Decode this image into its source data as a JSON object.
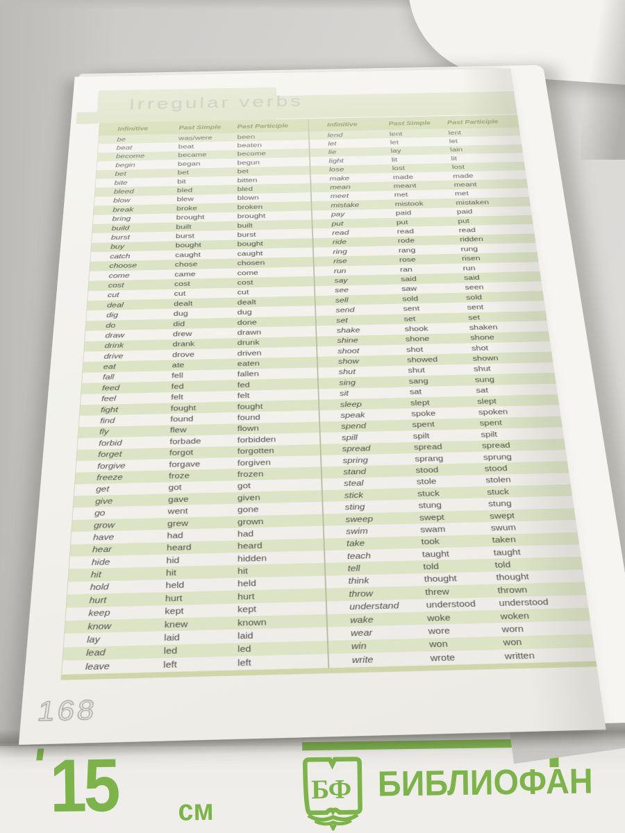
{
  "page": {
    "title": "Irregular verbs",
    "page_number": "168",
    "columns": [
      "Infinitive",
      "Past Simple",
      "Past Participle"
    ],
    "left_rows": [
      [
        "be",
        "was/were",
        "been"
      ],
      [
        "beat",
        "beat",
        "beaten"
      ],
      [
        "become",
        "became",
        "become"
      ],
      [
        "begin",
        "began",
        "begun"
      ],
      [
        "bet",
        "bet",
        "bet"
      ],
      [
        "bite",
        "bit",
        "bitten"
      ],
      [
        "bleed",
        "bled",
        "bled"
      ],
      [
        "blow",
        "blew",
        "blown"
      ],
      [
        "break",
        "broke",
        "broken"
      ],
      [
        "bring",
        "brought",
        "brought"
      ],
      [
        "build",
        "built",
        "built"
      ],
      [
        "burst",
        "burst",
        "burst"
      ],
      [
        "buy",
        "bought",
        "bought"
      ],
      [
        "catch",
        "caught",
        "caught"
      ],
      [
        "choose",
        "chose",
        "chosen"
      ],
      [
        "come",
        "came",
        "come"
      ],
      [
        "cost",
        "cost",
        "cost"
      ],
      [
        "cut",
        "cut",
        "cut"
      ],
      [
        "deal",
        "dealt",
        "dealt"
      ],
      [
        "dig",
        "dug",
        "dug"
      ],
      [
        "do",
        "did",
        "done"
      ],
      [
        "draw",
        "drew",
        "drawn"
      ],
      [
        "drink",
        "drank",
        "drunk"
      ],
      [
        "drive",
        "drove",
        "driven"
      ],
      [
        "eat",
        "ate",
        "eaten"
      ],
      [
        "fall",
        "fell",
        "fallen"
      ],
      [
        "feed",
        "fed",
        "fed"
      ],
      [
        "feel",
        "felt",
        "felt"
      ],
      [
        "fight",
        "fought",
        "fought"
      ],
      [
        "find",
        "found",
        "found"
      ],
      [
        "fly",
        "flew",
        "flown"
      ],
      [
        "forbid",
        "forbade",
        "forbidden"
      ],
      [
        "forget",
        "forgot",
        "forgotten"
      ],
      [
        "forgive",
        "forgave",
        "forgiven"
      ],
      [
        "freeze",
        "froze",
        "frozen"
      ],
      [
        "get",
        "got",
        "got"
      ],
      [
        "give",
        "gave",
        "given"
      ],
      [
        "go",
        "went",
        "gone"
      ],
      [
        "grow",
        "grew",
        "grown"
      ],
      [
        "have",
        "had",
        "had"
      ],
      [
        "hear",
        "heard",
        "heard"
      ],
      [
        "hide",
        "hid",
        "hidden"
      ],
      [
        "hit",
        "hit",
        "hit"
      ],
      [
        "hold",
        "held",
        "held"
      ],
      [
        "hurt",
        "hurt",
        "hurt"
      ],
      [
        "keep",
        "kept",
        "kept"
      ],
      [
        "know",
        "knew",
        "known"
      ],
      [
        "lay",
        "laid",
        "laid"
      ],
      [
        "lead",
        "led",
        "led"
      ],
      [
        "leave",
        "left",
        "left"
      ]
    ],
    "right_rows": [
      [
        "lend",
        "lent",
        "lent"
      ],
      [
        "let",
        "let",
        "let"
      ],
      [
        "lie",
        "lay",
        "lain"
      ],
      [
        "light",
        "lit",
        "lit"
      ],
      [
        "lose",
        "lost",
        "lost"
      ],
      [
        "make",
        "made",
        "made"
      ],
      [
        "mean",
        "meant",
        "meant"
      ],
      [
        "meet",
        "met",
        "met"
      ],
      [
        "mistake",
        "mistook",
        "mistaken"
      ],
      [
        "pay",
        "paid",
        "paid"
      ],
      [
        "put",
        "put",
        "put"
      ],
      [
        "read",
        "read",
        "read"
      ],
      [
        "ride",
        "rode",
        "ridden"
      ],
      [
        "ring",
        "rang",
        "rung"
      ],
      [
        "rise",
        "rose",
        "risen"
      ],
      [
        "run",
        "ran",
        "run"
      ],
      [
        "say",
        "said",
        "said"
      ],
      [
        "see",
        "saw",
        "seen"
      ],
      [
        "sell",
        "sold",
        "sold"
      ],
      [
        "send",
        "sent",
        "sent"
      ],
      [
        "set",
        "set",
        "set"
      ],
      [
        "shake",
        "shook",
        "shaken"
      ],
      [
        "shine",
        "shone",
        "shone"
      ],
      [
        "shoot",
        "shot",
        "shot"
      ],
      [
        "show",
        "showed",
        "shown"
      ],
      [
        "shut",
        "shut",
        "shut"
      ],
      [
        "sing",
        "sang",
        "sung"
      ],
      [
        "sit",
        "sat",
        "sat"
      ],
      [
        "sleep",
        "slept",
        "slept"
      ],
      [
        "speak",
        "spoke",
        "spoken"
      ],
      [
        "spend",
        "spent",
        "spent"
      ],
      [
        "spill",
        "spilt",
        "spilt"
      ],
      [
        "spread",
        "spread",
        "spread"
      ],
      [
        "spring",
        "sprang",
        "sprung"
      ],
      [
        "stand",
        "stood",
        "stood"
      ],
      [
        "steal",
        "stole",
        "stolen"
      ],
      [
        "stick",
        "stuck",
        "stuck"
      ],
      [
        "sting",
        "stung",
        "stung"
      ],
      [
        "sweep",
        "swept",
        "swept"
      ],
      [
        "swim",
        "swam",
        "swum"
      ],
      [
        "take",
        "took",
        "taken"
      ],
      [
        "teach",
        "taught",
        "taught"
      ],
      [
        "tell",
        "told",
        "told"
      ],
      [
        "think",
        "thought",
        "thought"
      ],
      [
        "throw",
        "threw",
        "thrown"
      ],
      [
        "understand",
        "understood",
        "understood"
      ],
      [
        "wake",
        "woke",
        "woken"
      ],
      [
        "wear",
        "wore",
        "worn"
      ],
      [
        "win",
        "won",
        "won"
      ],
      [
        "write",
        "wrote",
        "written"
      ]
    ]
  },
  "footer": {
    "ruler_value": "15",
    "ruler_unit": "см",
    "logo_initials": "БФ",
    "brand": "БИБЛИОФАН"
  },
  "colors": {
    "brand_green": "#7cb449",
    "stripe_green": "#dde4c6",
    "banner_green": "#d7debb",
    "header_band_green": "#cfd7a8",
    "header_text_olive": "#6e7e3b",
    "page_bg": "#f2f1ec"
  }
}
